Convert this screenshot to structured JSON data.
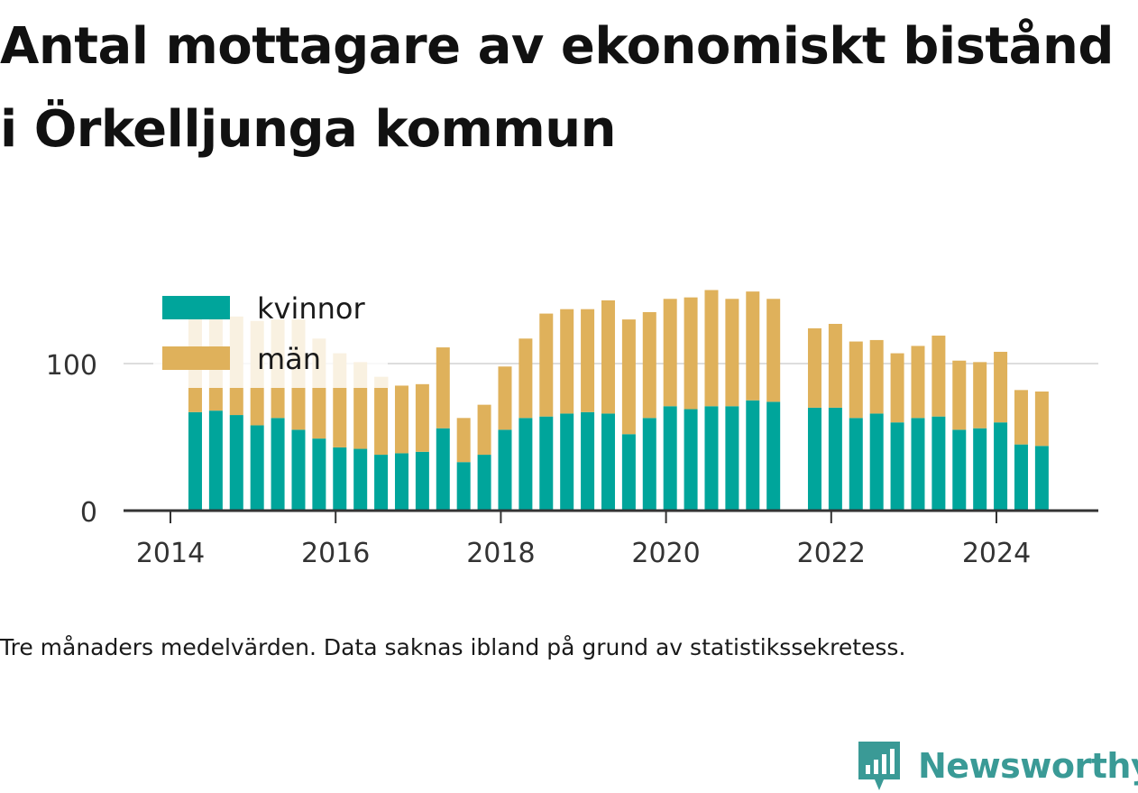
{
  "title": "Antal mottagare av ekonomiskt bistånd i Örkelljunga kommun",
  "note": "Tre månaders medelvärden. Data saknas ibland på grund av statistikssekretess.",
  "brand": "Newsworthy",
  "colors": {
    "kvinnor": "#00a59b",
    "man": "#dfb15b",
    "grid": "#dddddd",
    "axis": "#333333",
    "brand": "#3a9a96"
  },
  "chart_data": {
    "type": "bar",
    "stacked": true,
    "grid": true,
    "legend_position": "top-left",
    "x_axis": {
      "ticks": [
        "2014",
        "2016",
        "2018",
        "2020",
        "2022",
        "2024"
      ],
      "range": [
        2013.75,
        2025.2
      ]
    },
    "y_axis": {
      "ticks": [
        "0",
        "100"
      ],
      "range": [
        0,
        150
      ]
    },
    "x": [
      2014.3,
      2014.55,
      2014.8,
      2015.05,
      2015.3,
      2015.55,
      2015.8,
      2016.05,
      2016.3,
      2016.55,
      2016.8,
      2017.05,
      2017.3,
      2017.55,
      2017.8,
      2018.05,
      2018.3,
      2018.55,
      2018.8,
      2019.05,
      2019.3,
      2019.55,
      2019.8,
      2020.05,
      2020.3,
      2020.55,
      2020.8,
      2021.05,
      2021.3,
      2021.8,
      2022.05,
      2022.3,
      2022.55,
      2022.8,
      2023.05,
      2023.3,
      2023.55,
      2023.8,
      2024.05,
      2024.3,
      2024.55
    ],
    "series": [
      {
        "name": "kvinnor",
        "values": [
          67,
          68,
          65,
          58,
          63,
          55,
          49,
          43,
          42,
          38,
          39,
          40,
          56,
          33,
          38,
          55,
          63,
          64,
          66,
          67,
          66,
          52,
          63,
          71,
          69,
          71,
          71,
          75,
          74,
          70,
          70,
          63,
          66,
          60,
          63,
          64,
          55,
          56,
          60,
          45,
          44
        ]
      },
      {
        "name": "män",
        "values": [
          65,
          65,
          67,
          71,
          67,
          75,
          68,
          64,
          59,
          53,
          46,
          46,
          55,
          30,
          34,
          43,
          54,
          70,
          71,
          70,
          77,
          78,
          72,
          73,
          76,
          79,
          73,
          74,
          70,
          54,
          57,
          52,
          50,
          47,
          49,
          55,
          47,
          45,
          48,
          37,
          37
        ]
      }
    ]
  }
}
